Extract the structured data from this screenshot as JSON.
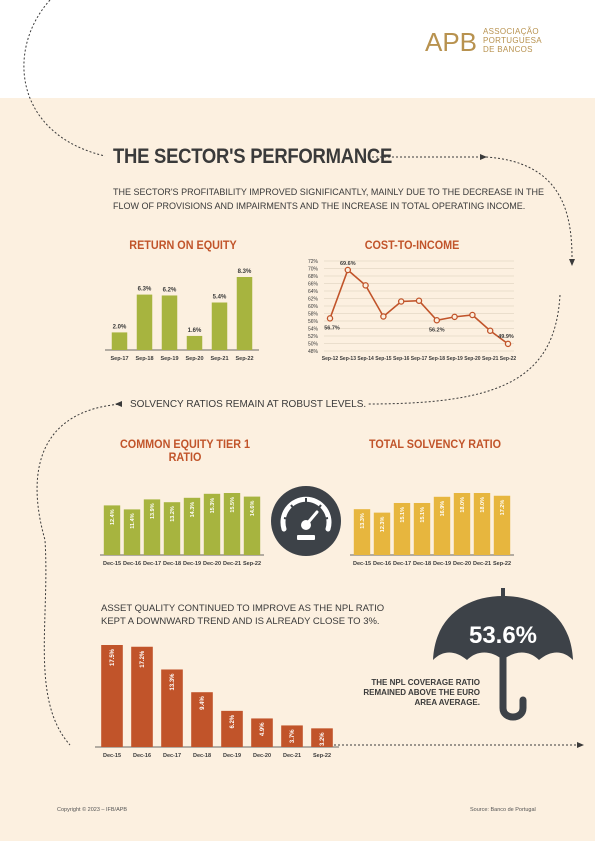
{
  "logo": {
    "mark": "APB",
    "lines": [
      "ASSOCIAÇÃO",
      "PORTUGUESA",
      "DE BANCOS"
    ]
  },
  "title": "THE SECTOR'S PERFORMANCE",
  "intro": "THE SECTOR'S PROFITABILITY IMPROVED SIGNIFICANTLY, MAINLY DUE TO THE DECREASE IN THE FLOW OF PROVISIONS AND IMPAIRMENTS AND THE INCREASE IN TOTAL OPERATING INCOME.",
  "solvency_statement": "SOLVENCY RATIOS REMAIN AT ROBUST LEVELS.",
  "asset_quality_line1": "ASSET QUALITY CONTINUED TO IMPROVE AS THE NPL RATIO",
  "asset_quality_line2": "KEPT A DOWNWARD TREND AND IS ALREADY CLOSE TO 3%.",
  "coverage": {
    "value": "53.6%",
    "lines": [
      "THE NPL COVERAGE RATIO",
      "REMAINED ABOVE THE EURO",
      "AREA AVERAGE."
    ]
  },
  "footer": {
    "copyright": "Copyright © 2023 – IFB/APB",
    "source": "Source: Banco de Portugal"
  },
  "colors": {
    "olive": "#a7b43f",
    "gold": "#e7b63e",
    "rust": "#c1542a",
    "dark": "#3d4248",
    "background": "#fcf0e0"
  },
  "icons": [
    "speedometer-icon",
    "umbrella-icon",
    "arrow-right-icon",
    "arrow-down-icon",
    "arrow-left-icon"
  ],
  "chart_data": [
    {
      "id": "roe",
      "type": "bar",
      "title": "RETURN ON EQUITY",
      "categories": [
        "Sep-17",
        "Sep-18",
        "Sep-19",
        "Sep-20",
        "Sep-21",
        "Sep-22"
      ],
      "values": [
        2.0,
        6.3,
        6.2,
        1.6,
        5.4,
        8.3
      ],
      "labels": [
        "2.0%",
        "6.3%",
        "6.2%",
        "1.6%",
        "5.4%",
        "8.3%"
      ],
      "color": "#a7b43f",
      "ylim": [
        0,
        8.3
      ]
    },
    {
      "id": "cti",
      "type": "line",
      "title": "COST-TO-INCOME",
      "categories": [
        "Sep-12",
        "Sep-13",
        "Sep-14",
        "Sep-15",
        "Sep-16",
        "Sep-17",
        "Sep-18",
        "Sep-19",
        "Sep-20",
        "Sep-21",
        "Sep-22"
      ],
      "values": [
        56.7,
        69.6,
        65.5,
        57.2,
        61.2,
        61.4,
        56.2,
        57.1,
        57.6,
        53.4,
        49.9
      ],
      "point_labels": [
        "56.7%",
        "69.6%",
        "",
        "",
        "",
        "",
        "56.2%",
        "",
        "",
        "",
        "49.9%"
      ],
      "yticks": [
        "72%",
        "70%",
        "68%",
        "66%",
        "64%",
        "62%",
        "60%",
        "58%",
        "56%",
        "54%",
        "52%",
        "50%",
        "48%"
      ],
      "ylim": [
        48,
        72
      ],
      "grid": true,
      "color": "#c1542a"
    },
    {
      "id": "cet1",
      "type": "bar",
      "title": "COMMON EQUITY TIER 1 RATIO",
      "categories": [
        "Dec-15",
        "Dec-16",
        "Dec-17",
        "Dec-18",
        "Dec-19",
        "Dec-20",
        "Dec-21",
        "Sep-22"
      ],
      "values": [
        12.4,
        11.4,
        13.9,
        13.2,
        14.3,
        15.3,
        15.5,
        14.6
      ],
      "labels": [
        "12.4%",
        "11.4%",
        "13.9%",
        "13.2%",
        "14.3%",
        "15.3%",
        "15.5%",
        "14.6%"
      ],
      "color": "#a7b43f",
      "ylim": [
        0,
        15.5
      ]
    },
    {
      "id": "tsr",
      "type": "bar",
      "title": "TOTAL SOLVENCY RATIO",
      "categories": [
        "Dec-15",
        "Dec-16",
        "Dec-17",
        "Dec-18",
        "Dec-19",
        "Dec-20",
        "Dec-21",
        "Sep-22"
      ],
      "values": [
        13.3,
        12.3,
        15.1,
        15.1,
        16.9,
        18.0,
        18.0,
        17.2
      ],
      "labels": [
        "13.3%",
        "12.3%",
        "15.1%",
        "15.1%",
        "16.9%",
        "18.0%",
        "18.0%",
        "17.2%"
      ],
      "color": "#e7b63e",
      "ylim": [
        0,
        18.0
      ]
    },
    {
      "id": "npl",
      "type": "bar",
      "title": "",
      "categories": [
        "Dec-15",
        "Dec-16",
        "Dec-17",
        "Dec-18",
        "Dec-19",
        "Dec-20",
        "Dec-21",
        "Sep-22"
      ],
      "values": [
        17.5,
        17.2,
        13.3,
        9.4,
        6.2,
        4.9,
        3.7,
        3.2
      ],
      "labels": [
        "17.5%",
        "17.2%",
        "13.3%",
        "9.4%",
        "6.2%",
        "4.9%",
        "3.7%",
        "3.2%"
      ],
      "color": "#c1542a",
      "ylim": [
        0,
        17.5
      ]
    }
  ]
}
